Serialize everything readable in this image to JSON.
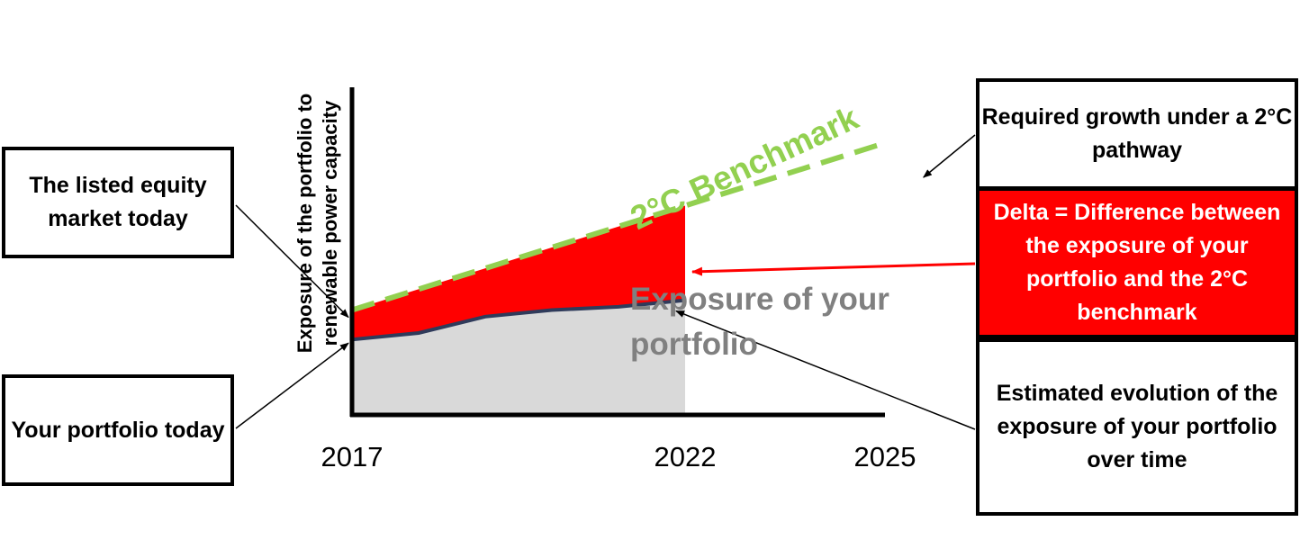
{
  "chart_data": {
    "type": "area",
    "x": [
      2017,
      2018,
      2019,
      2020,
      2021,
      2022
    ],
    "xlim": [
      2017,
      2025
    ],
    "ylim": [
      0,
      100
    ],
    "x_tick_labels": [
      "2017",
      "2022",
      "2025"
    ],
    "ylabel": "Exposure of the portfolio to renewable power capacity",
    "series": [
      {
        "name": "Exposure of your portfolio",
        "style": "solid line with grey fill",
        "x": [
          2017,
          2018,
          2019,
          2020,
          2021,
          2022
        ],
        "values": [
          23,
          25,
          30,
          32,
          33,
          35
        ]
      },
      {
        "name": "2°C Benchmark",
        "style": "dashed",
        "x": [
          2017,
          2025
        ],
        "values": [
          32,
          83
        ]
      },
      {
        "name": "Delta",
        "style": "red fill between portfolio and benchmark",
        "x": [
          2017,
          2022
        ]
      }
    ],
    "series_labels": {
      "benchmark": "2°C Benchmark",
      "portfolio": "Exposure of your portfolio"
    }
  },
  "annotations": {
    "market_today": "The listed equity market today",
    "portfolio_today": "Your portfolio today",
    "required_growth": "Required growth under a 2°C  pathway",
    "delta": "Delta = Difference between the exposure of your portfolio and the 2°C benchmark",
    "estimated_evolution": "Estimated evolution of the exposure of your portfolio over time"
  },
  "colors": {
    "benchmark": "#92d050",
    "delta_fill": "#ff0000",
    "portfolio_line": "#2f3b5b",
    "portfolio_fill": "#d9d9d9",
    "portfolio_label": "#808080",
    "axis": "#000000"
  }
}
